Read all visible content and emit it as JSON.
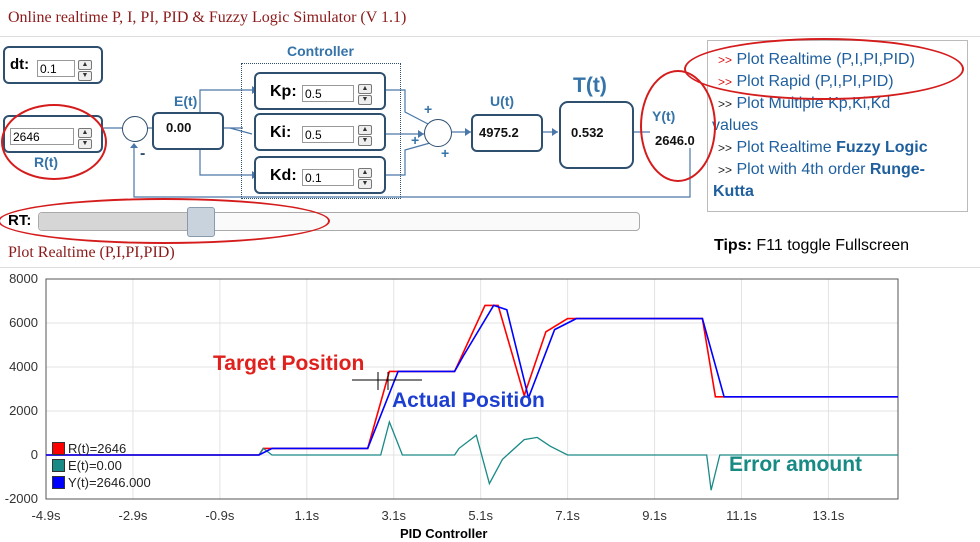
{
  "title": "Online realtime P, I, PI, PID & Fuzzy Logic Simulator (V 1.1)",
  "dt": {
    "label": "dt:",
    "value": "0.1"
  },
  "rt": {
    "label": "RT:"
  },
  "setpoint": {
    "value": "2646",
    "label": "R(t)"
  },
  "error_block": {
    "label": "E(t)",
    "value": "0.00"
  },
  "controller": {
    "title": "Controller",
    "kp": {
      "label": "Kp:",
      "value": "0.5"
    },
    "ki": {
      "label": "Ki:",
      "value": "0.5"
    },
    "kd": {
      "label": "Kd:",
      "value": "0.1"
    }
  },
  "output_block": {
    "label": "U(t)",
    "value": "4975.2"
  },
  "plant": {
    "label": "T(t)",
    "value": "0.532"
  },
  "feedback": {
    "label": "Y(t)",
    "value": "2646.0"
  },
  "signs": {
    "plus": "+",
    "minus": "-"
  },
  "menu": {
    "arrow": ">>",
    "item1": "Plot Realtime (P,I,PI,PID)",
    "item2": "Plot Rapid (P,I,PI,PID)",
    "item3a": "Plot Multiple Kp,Ki,Kd",
    "item3b": "values",
    "item4a": "Plot Realtime ",
    "item4b": "Fuzzy Logic",
    "item5a": "Plot with 4th order ",
    "item5b": "Runge-",
    "item5c": "Kutta"
  },
  "tips": {
    "label": "Tips:",
    "text": " F11 toggle Fullscreen"
  },
  "plot_heading": "Plot Realtime (P,I,PI,PID)",
  "annotations": {
    "target": "Target Position",
    "actual": "Actual Position",
    "error": "Error amount"
  },
  "colors": {
    "R": "#ff0000",
    "E": "#1a8a87",
    "Y": "#0000ff",
    "annot_target": "#e0201c",
    "annot_actual": "#1d3fd1",
    "annot_error": "#178a83"
  },
  "chart_data": {
    "type": "line",
    "xlabel": "PID Controller",
    "ylabel": "",
    "x_tick_labels": [
      "-4.9s",
      "-2.9s",
      "-0.9s",
      "1.1s",
      "3.1s",
      "5.1s",
      "7.1s",
      "9.1s",
      "11.1s",
      "13.1s"
    ],
    "y_tick_labels": [
      "-2000",
      "0",
      "2000",
      "4000",
      "6000",
      "8000"
    ],
    "xlim": [
      -4.9,
      14.7
    ],
    "ylim": [
      -2000,
      8000
    ],
    "grid": true,
    "legend_position": "bottom-left",
    "series": [
      {
        "name": "R(t)=2646",
        "color": "#ff0000",
        "x": [
          -4.9,
          0.0,
          0.1,
          2.5,
          3.0,
          4.5,
          5.2,
          5.5,
          6.1,
          6.6,
          7.1,
          10.2,
          10.5,
          14.7
        ],
        "y": [
          0,
          0,
          300,
          300,
          3800,
          3800,
          6800,
          6800,
          2700,
          5600,
          6200,
          6200,
          2646,
          2646
        ]
      },
      {
        "name": "E(t)=0.00",
        "color": "#1a8a87",
        "x": [
          -4.9,
          0.0,
          0.1,
          0.3,
          2.5,
          2.8,
          3.0,
          3.3,
          4.5,
          4.6,
          5.0,
          5.3,
          5.6,
          6.1,
          6.4,
          6.7,
          7.1,
          10.3,
          10.4,
          10.6,
          14.7
        ],
        "y": [
          0,
          0,
          300,
          0,
          0,
          0,
          1500,
          0,
          0,
          300,
          900,
          -1300,
          -200,
          700,
          800,
          400,
          0,
          0,
          -1600,
          0,
          0
        ]
      },
      {
        "name": "Y(t)=2646.000",
        "color": "#0000ff",
        "x": [
          -4.9,
          0.0,
          0.3,
          2.5,
          3.2,
          4.5,
          4.7,
          5.4,
          5.7,
          6.2,
          6.8,
          7.3,
          10.2,
          10.7,
          14.7
        ],
        "y": [
          0,
          0,
          300,
          300,
          3800,
          3800,
          4500,
          6800,
          6600,
          2600,
          5700,
          6200,
          6200,
          2646,
          2646
        ]
      }
    ]
  }
}
